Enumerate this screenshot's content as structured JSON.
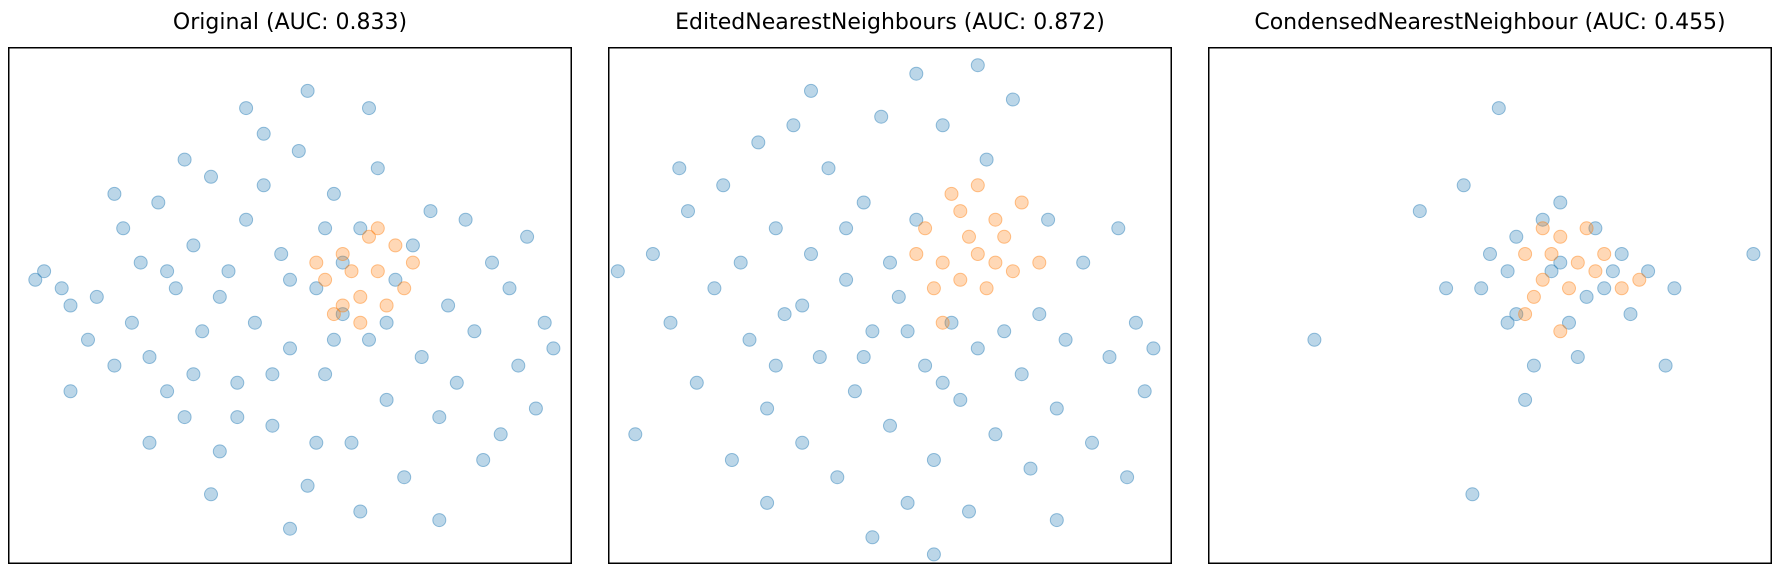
{
  "colors": {
    "majority": "#1f77b4",
    "minority": "#ff7f0e",
    "point_alpha": 0.3
  },
  "chart_data": [
    {
      "type": "scatter",
      "title": "Original (AUC: 0.833)",
      "xlabel": "",
      "ylabel": "",
      "xlim": [
        -3.2,
        3.2
      ],
      "ylim": [
        -3.0,
        3.0
      ],
      "grid": false,
      "ticks": "none",
      "series": [
        {
          "class": "majority",
          "color": "#1f77b4",
          "points": [
            [
              -2.9,
              0.3
            ],
            [
              -2.8,
              0.4
            ],
            [
              -2.6,
              0.2
            ],
            [
              -2.5,
              0.0
            ],
            [
              -2.3,
              -0.4
            ],
            [
              -2.2,
              0.1
            ],
            [
              -2.0,
              -0.7
            ],
            [
              -1.9,
              0.9
            ],
            [
              -1.8,
              -0.2
            ],
            [
              -1.7,
              0.5
            ],
            [
              -1.6,
              -0.6
            ],
            [
              -1.5,
              1.2
            ],
            [
              -1.4,
              -1.0
            ],
            [
              -1.3,
              0.2
            ],
            [
              -1.2,
              -1.3
            ],
            [
              -1.1,
              0.7
            ],
            [
              -1.0,
              -0.3
            ],
            [
              -0.9,
              1.5
            ],
            [
              -0.8,
              -1.7
            ],
            [
              -0.7,
              0.4
            ],
            [
              -0.6,
              -0.9
            ],
            [
              -0.5,
              1.0
            ],
            [
              -0.4,
              -0.2
            ],
            [
              -0.3,
              2.0
            ],
            [
              -0.2,
              -1.4
            ],
            [
              -0.1,
              0.6
            ],
            [
              0.0,
              -0.5
            ],
            [
              0.1,
              1.8
            ],
            [
              0.2,
              -2.1
            ],
            [
              0.3,
              0.2
            ],
            [
              0.4,
              -0.8
            ],
            [
              0.5,
              1.3
            ],
            [
              0.6,
              -0.1
            ],
            [
              0.7,
              -1.6
            ],
            [
              0.8,
              0.9
            ],
            [
              0.9,
              -0.4
            ],
            [
              1.0,
              1.6
            ],
            [
              1.1,
              -1.1
            ],
            [
              1.2,
              0.3
            ],
            [
              1.3,
              -2.0
            ],
            [
              1.4,
              0.7
            ],
            [
              1.5,
              -0.6
            ],
            [
              1.6,
              1.1
            ],
            [
              1.7,
              -1.3
            ],
            [
              1.8,
              0.0
            ],
            [
              1.9,
              -0.9
            ],
            [
              2.0,
              1.0
            ],
            [
              2.1,
              -0.3
            ],
            [
              2.3,
              0.5
            ],
            [
              2.4,
              -1.5
            ],
            [
              2.5,
              0.2
            ],
            [
              2.6,
              -0.7
            ],
            [
              2.7,
              0.8
            ],
            [
              2.8,
              -1.2
            ],
            [
              2.9,
              -0.2
            ],
            [
              3.0,
              -0.5
            ],
            [
              -2.0,
              1.3
            ],
            [
              -1.2,
              1.7
            ],
            [
              -0.5,
              2.3
            ],
            [
              0.2,
              2.5
            ],
            [
              0.9,
              2.3
            ],
            [
              -1.6,
              -1.6
            ],
            [
              -0.9,
              -2.2
            ],
            [
              0.0,
              -2.6
            ],
            [
              0.8,
              -2.4
            ],
            [
              1.7,
              -2.5
            ],
            [
              2.2,
              -1.8
            ],
            [
              -2.5,
              -1.0
            ],
            [
              -0.3,
              1.4
            ],
            [
              0.4,
              0.9
            ],
            [
              -0.8,
              0.1
            ],
            [
              -0.2,
              -0.8
            ],
            [
              0.6,
              0.5
            ],
            [
              -1.4,
              0.4
            ],
            [
              1.1,
              -0.2
            ],
            [
              -0.6,
              -1.3
            ],
            [
              0.3,
              -1.6
            ],
            [
              -1.1,
              -0.8
            ],
            [
              0.0,
              0.3
            ],
            [
              0.5,
              -0.4
            ]
          ]
        },
        {
          "class": "minority",
          "color": "#ff7f0e",
          "points": [
            [
              0.4,
              0.3
            ],
            [
              0.6,
              0.6
            ],
            [
              0.8,
              0.1
            ],
            [
              1.0,
              0.4
            ],
            [
              1.2,
              0.7
            ],
            [
              0.5,
              -0.1
            ],
            [
              0.9,
              0.8
            ],
            [
              1.1,
              0.0
            ],
            [
              0.7,
              0.4
            ],
            [
              1.3,
              0.2
            ],
            [
              0.3,
              0.5
            ],
            [
              0.8,
              -0.2
            ],
            [
              1.0,
              0.9
            ],
            [
              1.4,
              0.5
            ],
            [
              0.6,
              0.0
            ]
          ]
        }
      ]
    },
    {
      "type": "scatter",
      "title": "EditedNearestNeighbours (AUC: 0.872)",
      "xlabel": "",
      "ylabel": "",
      "xlim": [
        -3.2,
        3.2
      ],
      "ylim": [
        -3.0,
        3.0
      ],
      "grid": false,
      "ticks": "none",
      "series": [
        {
          "class": "majority",
          "color": "#1f77b4",
          "points": [
            [
              -3.1,
              0.4
            ],
            [
              -2.9,
              -1.5
            ],
            [
              -2.7,
              0.6
            ],
            [
              -2.5,
              -0.2
            ],
            [
              -2.3,
              1.1
            ],
            [
              -2.2,
              -0.9
            ],
            [
              -2.0,
              0.2
            ],
            [
              -1.9,
              1.4
            ],
            [
              -1.8,
              -1.8
            ],
            [
              -1.7,
              0.5
            ],
            [
              -1.6,
              -0.4
            ],
            [
              -1.5,
              1.9
            ],
            [
              -1.4,
              -1.2
            ],
            [
              -1.3,
              0.9
            ],
            [
              -1.2,
              -0.1
            ],
            [
              -1.1,
              2.1
            ],
            [
              -1.0,
              -1.6
            ],
            [
              -0.9,
              0.6
            ],
            [
              -0.8,
              -0.6
            ],
            [
              -0.7,
              1.6
            ],
            [
              -0.6,
              -2.0
            ],
            [
              -0.5,
              0.3
            ],
            [
              -0.4,
              -1.0
            ],
            [
              -0.3,
              1.2
            ],
            [
              -0.2,
              -0.3
            ],
            [
              -0.1,
              2.2
            ],
            [
              0.0,
              -1.4
            ],
            [
              0.1,
              0.1
            ],
            [
              0.2,
              -2.3
            ],
            [
              0.3,
              1.0
            ],
            [
              0.4,
              -0.7
            ],
            [
              0.5,
              -1.8
            ],
            [
              0.6,
              2.1
            ],
            [
              0.7,
              -0.2
            ],
            [
              0.8,
              -1.1
            ],
            [
              0.9,
              -2.4
            ],
            [
              1.0,
              -0.5
            ],
            [
              1.1,
              1.7
            ],
            [
              1.2,
              -1.5
            ],
            [
              1.3,
              -0.3
            ],
            [
              1.4,
              2.4
            ],
            [
              1.5,
              -0.8
            ],
            [
              1.6,
              -1.9
            ],
            [
              1.7,
              -0.1
            ],
            [
              1.8,
              1.0
            ],
            [
              1.9,
              -1.2
            ],
            [
              2.0,
              -0.4
            ],
            [
              2.2,
              0.5
            ],
            [
              2.3,
              -1.6
            ],
            [
              2.5,
              -0.6
            ],
            [
              2.6,
              0.9
            ],
            [
              2.7,
              -2.0
            ],
            [
              2.8,
              -0.2
            ],
            [
              2.9,
              -1.0
            ],
            [
              3.0,
              -0.5
            ],
            [
              -2.4,
              1.6
            ],
            [
              -0.9,
              2.5
            ],
            [
              0.3,
              2.7
            ],
            [
              1.0,
              2.8
            ],
            [
              -0.2,
              -2.7
            ],
            [
              0.5,
              -2.9
            ],
            [
              -1.4,
              -2.3
            ],
            [
              1.9,
              -2.5
            ],
            [
              -0.5,
              0.9
            ],
            [
              0.0,
              0.5
            ],
            [
              -1.0,
              0.0
            ],
            [
              -0.3,
              -0.6
            ],
            [
              0.6,
              -0.9
            ],
            [
              -1.3,
              -0.7
            ],
            [
              0.2,
              -0.3
            ]
          ]
        },
        {
          "class": "minority",
          "color": "#ff7f0e",
          "points": [
            [
              0.4,
              0.9
            ],
            [
              0.6,
              0.5
            ],
            [
              0.8,
              1.1
            ],
            [
              1.0,
              0.6
            ],
            [
              1.2,
              1.0
            ],
            [
              1.4,
              0.4
            ],
            [
              0.5,
              0.2
            ],
            [
              0.9,
              0.8
            ],
            [
              1.1,
              0.2
            ],
            [
              0.7,
              1.3
            ],
            [
              1.3,
              0.8
            ],
            [
              1.7,
              0.5
            ],
            [
              0.3,
              0.6
            ],
            [
              0.8,
              0.3
            ],
            [
              1.5,
              1.2
            ],
            [
              1.0,
              1.4
            ],
            [
              0.6,
              -0.2
            ],
            [
              1.2,
              0.5
            ]
          ]
        }
      ]
    },
    {
      "type": "scatter",
      "title": "CondensedNearestNeighbour (AUC: 0.455)",
      "xlabel": "",
      "ylabel": "",
      "xlim": [
        -3.2,
        3.2
      ],
      "ylim": [
        -3.0,
        3.0
      ],
      "grid": false,
      "ticks": "none",
      "series": [
        {
          "class": "majority",
          "color": "#1f77b4",
          "points": [
            [
              -2.0,
              -0.4
            ],
            [
              -0.8,
              1.1
            ],
            [
              -0.5,
              0.2
            ],
            [
              -0.3,
              1.4
            ],
            [
              -0.2,
              -2.2
            ],
            [
              0.0,
              0.6
            ],
            [
              0.1,
              2.3
            ],
            [
              0.2,
              -0.2
            ],
            [
              0.3,
              0.8
            ],
            [
              0.5,
              -0.7
            ],
            [
              0.7,
              0.4
            ],
            [
              0.8,
              1.2
            ],
            [
              1.0,
              -0.6
            ],
            [
              1.2,
              0.9
            ],
            [
              1.3,
              0.2
            ],
            [
              1.5,
              0.6
            ],
            [
              1.6,
              -0.1
            ],
            [
              1.8,
              0.4
            ],
            [
              2.0,
              -0.7
            ],
            [
              2.1,
              0.2
            ],
            [
              3.0,
              0.6
            ],
            [
              0.4,
              -1.1
            ],
            [
              0.9,
              -0.2
            ],
            [
              0.6,
              1.0
            ],
            [
              1.4,
              0.4
            ],
            [
              -0.1,
              0.2
            ],
            [
              0.3,
              -0.1
            ],
            [
              1.1,
              0.1
            ],
            [
              0.2,
              0.4
            ],
            [
              0.8,
              0.5
            ]
          ]
        },
        {
          "class": "minority",
          "color": "#ff7f0e",
          "points": [
            [
              0.4,
              0.6
            ],
            [
              0.6,
              0.3
            ],
            [
              0.8,
              0.8
            ],
            [
              1.0,
              0.5
            ],
            [
              0.5,
              0.1
            ],
            [
              0.9,
              0.2
            ],
            [
              1.2,
              0.4
            ],
            [
              0.7,
              0.6
            ],
            [
              1.3,
              0.6
            ],
            [
              0.4,
              -0.1
            ],
            [
              1.1,
              0.9
            ],
            [
              1.5,
              0.2
            ],
            [
              0.8,
              -0.3
            ],
            [
              1.7,
              0.3
            ],
            [
              0.6,
              0.9
            ]
          ]
        }
      ]
    }
  ]
}
